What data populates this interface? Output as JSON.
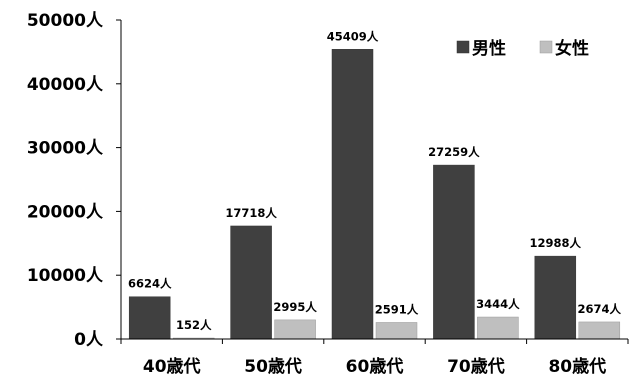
{
  "chart_data": {
    "type": "bar",
    "categories": [
      "40歳代",
      "50歳代",
      "60歳代",
      "70歳代",
      "80歳代"
    ],
    "series": [
      {
        "name": "男性",
        "values": [
          6624,
          17718,
          45409,
          27259,
          12988
        ],
        "labels": [
          "6624人",
          "17718人",
          "45409人",
          "27259人",
          "12988人"
        ],
        "color": "#404040"
      },
      {
        "name": "女性",
        "values": [
          152,
          2995,
          2591,
          3444,
          2674
        ],
        "labels": [
          "152人",
          "2995人",
          "2591人",
          "3444人",
          "2674人"
        ],
        "color": "#bfbfbf"
      }
    ],
    "ylim": [
      0,
      50000
    ],
    "yticks": [
      0,
      10000,
      20000,
      30000,
      40000,
      50000
    ],
    "ytick_labels": [
      "0人",
      "10000人",
      "20000人",
      "30000人",
      "40000人",
      "50000人"
    ],
    "grid": false,
    "legend": "top-right"
  }
}
